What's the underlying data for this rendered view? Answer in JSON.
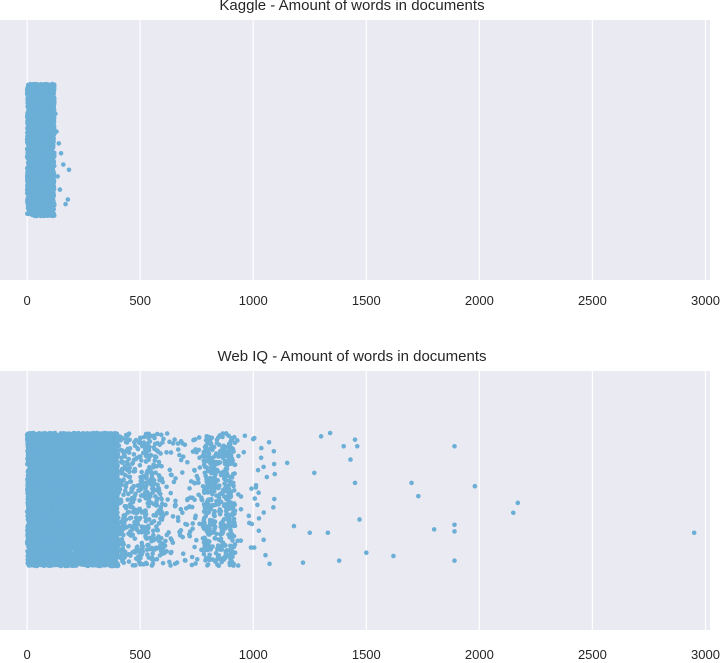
{
  "chart_data": [
    {
      "type": "scatter",
      "subtype": "stripplot",
      "title": "Kaggle - Amount of words in documents",
      "xlim": [
        -120,
        3020
      ],
      "xticks": [
        0,
        500,
        1000,
        1500,
        2000,
        2500,
        3000
      ],
      "grid": true,
      "colors": {
        "background": "#eaeaf2",
        "grid": "#ffffff",
        "point": "#6baed6"
      },
      "dense_band": {
        "x_range": [
          0,
          120
        ],
        "approx_points": 2500
      },
      "outliers": [
        {
          "x": 130,
          "y": 0.28
        },
        {
          "x": 140,
          "y": 0.1
        },
        {
          "x": 150,
          "y": -0.05
        },
        {
          "x": 160,
          "y": -0.22
        },
        {
          "x": 185,
          "y": -0.3
        },
        {
          "x": 180,
          "y": -0.75
        },
        {
          "x": 170,
          "y": -0.82
        },
        {
          "x": 135,
          "y": -0.4
        },
        {
          "x": 125,
          "y": 0.55
        },
        {
          "x": 145,
          "y": -0.6
        }
      ]
    },
    {
      "type": "scatter",
      "subtype": "stripplot",
      "title": "Web IQ - Amount of words in documents",
      "xlim": [
        -120,
        3020
      ],
      "xticks": [
        0,
        500,
        1000,
        1500,
        2000,
        2500,
        3000
      ],
      "grid": true,
      "colors": {
        "background": "#eaeaf2",
        "grid": "#ffffff",
        "point": "#6baed6"
      },
      "dense_band": {
        "x_range": [
          0,
          400
        ],
        "approx_points": 7000
      },
      "clusters": [
        {
          "x_range": [
            400,
            600
          ],
          "approx_points": 450
        },
        {
          "x_range": [
            600,
            800
          ],
          "approx_points": 130
        },
        {
          "x_range": [
            780,
            920
          ],
          "approx_points": 420
        },
        {
          "x_range": [
            920,
            1100
          ],
          "approx_points": 40
        }
      ],
      "outliers": [
        {
          "x": 1150,
          "y": 0.55
        },
        {
          "x": 1180,
          "y": -0.4
        },
        {
          "x": 1220,
          "y": -0.95
        },
        {
          "x": 1250,
          "y": -0.5
        },
        {
          "x": 1270,
          "y": 0.4
        },
        {
          "x": 1300,
          "y": 0.95
        },
        {
          "x": 1340,
          "y": 1.0
        },
        {
          "x": 1330,
          "y": -0.5
        },
        {
          "x": 1380,
          "y": -0.92
        },
        {
          "x": 1400,
          "y": 0.8
        },
        {
          "x": 1430,
          "y": 0.6
        },
        {
          "x": 1450,
          "y": 0.9
        },
        {
          "x": 1460,
          "y": 0.8
        },
        {
          "x": 1450,
          "y": 0.25
        },
        {
          "x": 1500,
          "y": -0.8
        },
        {
          "x": 1470,
          "y": -0.3
        },
        {
          "x": 1620,
          "y": -0.85
        },
        {
          "x": 1700,
          "y": 0.25
        },
        {
          "x": 1730,
          "y": 0.05
        },
        {
          "x": 1800,
          "y": -0.45
        },
        {
          "x": 1890,
          "y": 0.8
        },
        {
          "x": 1890,
          "y": -0.38
        },
        {
          "x": 1890,
          "y": -0.48
        },
        {
          "x": 1890,
          "y": -0.92
        },
        {
          "x": 1980,
          "y": 0.2
        },
        {
          "x": 2150,
          "y": -0.2
        },
        {
          "x": 2170,
          "y": -0.05
        },
        {
          "x": 2950,
          "y": -0.5
        }
      ]
    }
  ]
}
